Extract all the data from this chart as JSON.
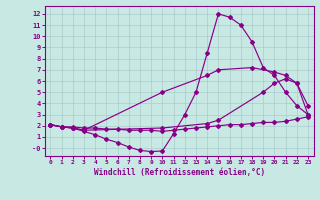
{
  "bg_color": "#c8e8e4",
  "grid_color": "#aacccc",
  "line_color": "#880088",
  "xlabel": "Windchill (Refroidissement éolien,°C)",
  "xlim": [
    -0.5,
    23.5
  ],
  "ylim": [
    -0.7,
    12.7
  ],
  "xticks": [
    0,
    1,
    2,
    3,
    4,
    5,
    6,
    7,
    8,
    9,
    10,
    11,
    12,
    13,
    14,
    15,
    16,
    17,
    18,
    19,
    20,
    21,
    22,
    23
  ],
  "yticks": [
    0,
    1,
    2,
    3,
    4,
    5,
    6,
    7,
    8,
    9,
    10,
    11,
    12
  ],
  "ytick_labels": [
    "-0",
    "1",
    "2",
    "3",
    "4",
    "5",
    "6",
    "7",
    "8",
    "9",
    "10",
    "11",
    "12"
  ],
  "line1_x": [
    0,
    1,
    2,
    3,
    4,
    5,
    6,
    7,
    8,
    9,
    10,
    11,
    12,
    13,
    14,
    15,
    16,
    17,
    18,
    19,
    20,
    21,
    22,
    23
  ],
  "line1_y": [
    2.1,
    1.9,
    1.9,
    1.8,
    1.8,
    1.7,
    1.7,
    1.6,
    1.6,
    1.6,
    1.5,
    1.6,
    1.7,
    1.8,
    1.9,
    2.0,
    2.1,
    2.1,
    2.2,
    2.3,
    2.3,
    2.4,
    2.6,
    2.8
  ],
  "line2_x": [
    0,
    1,
    2,
    3,
    4,
    5,
    6,
    7,
    8,
    9,
    10,
    11,
    12,
    13,
    14,
    15,
    16,
    17,
    18,
    19,
    20,
    21,
    22,
    23
  ],
  "line2_y": [
    2.1,
    1.9,
    1.8,
    1.5,
    1.2,
    0.8,
    0.5,
    0.1,
    -0.2,
    -0.3,
    -0.25,
    1.3,
    3.0,
    5.0,
    8.5,
    12.0,
    11.7,
    11.0,
    9.5,
    7.2,
    6.5,
    5.0,
    3.8,
    3.0
  ],
  "line3_x": [
    0,
    1,
    2,
    3,
    10,
    14,
    15,
    18,
    20,
    21,
    22,
    23
  ],
  "line3_y": [
    2.1,
    1.9,
    1.8,
    1.6,
    5.0,
    6.5,
    7.0,
    7.2,
    6.8,
    6.5,
    5.8,
    3.0
  ],
  "line4_x": [
    0,
    1,
    2,
    3,
    10,
    14,
    15,
    19,
    20,
    21,
    22,
    23
  ],
  "line4_y": [
    2.1,
    1.9,
    1.8,
    1.6,
    1.8,
    2.2,
    2.5,
    5.0,
    5.8,
    6.2,
    5.8,
    3.8
  ]
}
